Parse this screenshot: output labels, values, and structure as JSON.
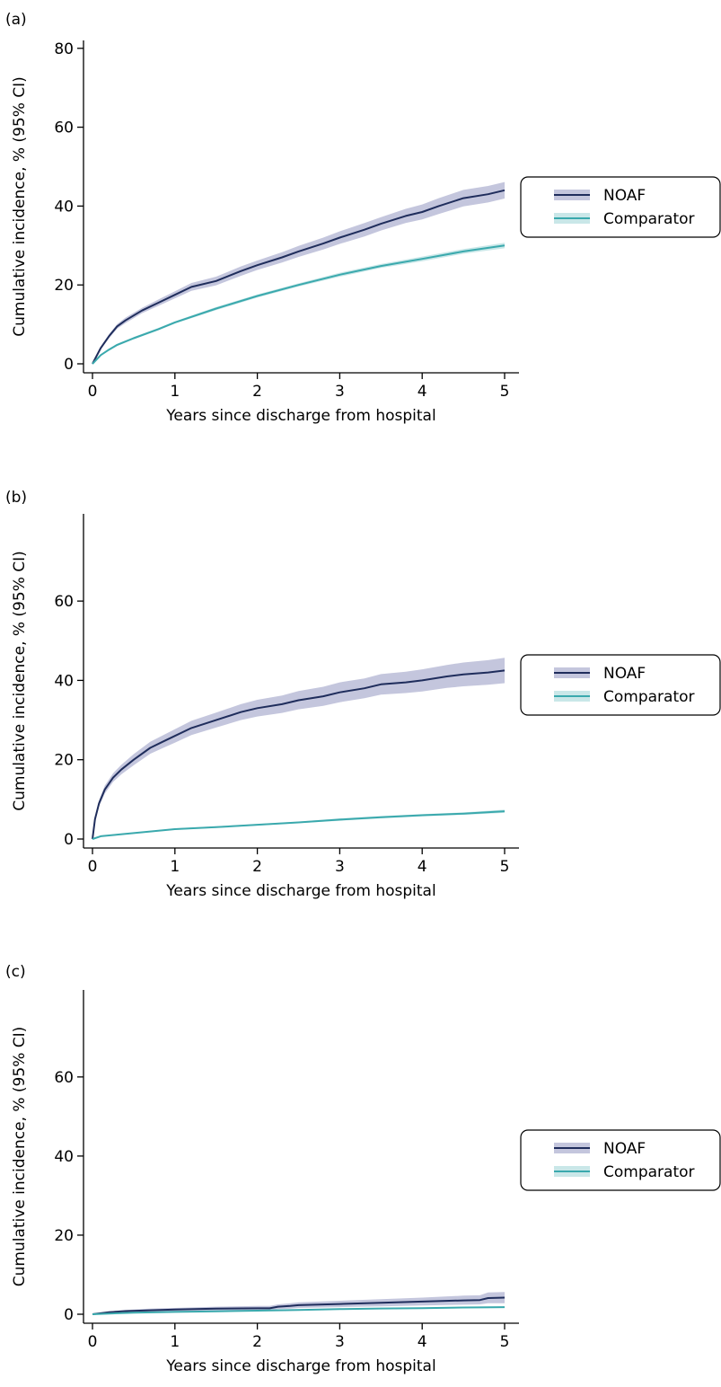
{
  "colors": {
    "noaf_line": "#1f2d5c",
    "noaf_band": "#c4c6dd",
    "comparator_line": "#3aa9ad",
    "comparator_band": "#c9e7e8"
  },
  "chart_data": [
    {
      "type": "line",
      "panel_label": "(a)",
      "xlabel": "Years since discharge from hospital",
      "ylabel": "Cumulative incidence, % (95% CI)",
      "xlim": [
        0,
        5
      ],
      "ylim": [
        0,
        82
      ],
      "xticks": [
        0,
        1,
        2,
        3,
        4,
        5
      ],
      "yticks": [
        0,
        20,
        40,
        60,
        80
      ],
      "legend_position": "right",
      "series": [
        {
          "name": "NOAF",
          "x": [
            0,
            0.1,
            0.2,
            0.3,
            0.4,
            0.6,
            0.8,
            1.0,
            1.2,
            1.5,
            1.8,
            2.0,
            2.3,
            2.5,
            2.8,
            3.0,
            3.3,
            3.5,
            3.8,
            4.0,
            4.2,
            4.5,
            4.8,
            5.0
          ],
          "values": [
            0,
            4,
            7,
            9.5,
            11,
            13.5,
            15.5,
            17.5,
            19.5,
            21,
            23.5,
            25,
            27,
            28.5,
            30.5,
            32,
            34,
            35.5,
            37.5,
            38.5,
            40,
            42,
            43,
            44
          ],
          "ci_low": [
            0,
            3.6,
            6.5,
            8.9,
            10.3,
            12.8,
            14.7,
            16.6,
            18.5,
            19.9,
            22.3,
            23.8,
            25.7,
            27.1,
            29.0,
            30.4,
            32.3,
            33.8,
            35.7,
            36.6,
            38.0,
            39.9,
            40.9,
            41.9
          ],
          "ci_high": [
            0,
            4.4,
            7.5,
            10.1,
            11.7,
            14.2,
            16.3,
            18.4,
            20.5,
            22.1,
            24.7,
            26.2,
            28.3,
            29.9,
            32.0,
            33.6,
            35.7,
            37.2,
            39.3,
            40.4,
            42.0,
            44.1,
            45.1,
            46.1
          ]
        },
        {
          "name": "Comparator",
          "x": [
            0,
            0.1,
            0.2,
            0.3,
            0.5,
            0.8,
            1.0,
            1.5,
            2.0,
            2.5,
            3.0,
            3.5,
            4.0,
            4.5,
            5.0
          ],
          "values": [
            0,
            2.2,
            3.6,
            4.8,
            6.5,
            8.8,
            10.5,
            14,
            17.2,
            20,
            22.6,
            24.8,
            26.6,
            28.5,
            30
          ],
          "ci_low": [
            0,
            2.0,
            3.3,
            4.5,
            6.2,
            8.5,
            10.2,
            13.6,
            16.8,
            19.6,
            22.1,
            24.3,
            26.0,
            27.9,
            29.3
          ],
          "ci_high": [
            0,
            2.4,
            3.9,
            5.1,
            6.8,
            9.1,
            10.8,
            14.4,
            17.6,
            20.4,
            23.1,
            25.3,
            27.2,
            29.1,
            30.7
          ]
        }
      ]
    },
    {
      "type": "line",
      "panel_label": "(b)",
      "xlabel": "Years since discharge from hospital",
      "ylabel": "Cumulative incidence, % (95% CI)",
      "xlim": [
        0,
        5
      ],
      "ylim": [
        0,
        82
      ],
      "xticks": [
        0,
        1,
        2,
        3,
        4,
        5
      ],
      "yticks": [
        0,
        20,
        40,
        60
      ],
      "legend_position": "right",
      "series": [
        {
          "name": "NOAF",
          "x": [
            0,
            0.03,
            0.08,
            0.15,
            0.25,
            0.35,
            0.5,
            0.7,
            0.85,
            1.0,
            1.2,
            1.5,
            1.8,
            2.0,
            2.3,
            2.5,
            2.8,
            3.0,
            3.3,
            3.5,
            3.8,
            4.0,
            4.3,
            4.5,
            4.8,
            5.0
          ],
          "values": [
            0,
            5,
            9,
            12.5,
            15.5,
            17.5,
            20,
            23,
            24.5,
            26,
            28,
            30,
            32,
            33,
            34,
            35,
            36,
            37,
            38,
            39,
            39.5,
            40,
            41,
            41.5,
            42,
            42.5
          ],
          "ci_low": [
            0,
            4.4,
            8.2,
            11.5,
            14.4,
            16.3,
            18.6,
            21.5,
            22.9,
            24.3,
            26.2,
            28.1,
            30.0,
            30.9,
            31.8,
            32.7,
            33.6,
            34.5,
            35.5,
            36.4,
            36.8,
            37.2,
            38.1,
            38.5,
            38.9,
            39.3
          ],
          "ci_high": [
            0,
            5.6,
            9.8,
            13.5,
            16.6,
            18.7,
            21.4,
            24.5,
            26.1,
            27.7,
            29.8,
            31.9,
            34.0,
            35.1,
            36.2,
            37.3,
            38.4,
            39.5,
            40.5,
            41.6,
            42.2,
            42.8,
            43.9,
            44.5,
            45.1,
            45.7
          ]
        },
        {
          "name": "Comparator",
          "x": [
            0,
            0.1,
            0.3,
            0.5,
            1.0,
            1.5,
            2.0,
            2.5,
            3.0,
            3.5,
            4.0,
            4.5,
            5.0
          ],
          "values": [
            0,
            0.7,
            1.1,
            1.5,
            2.5,
            3.0,
            3.6,
            4.2,
            4.9,
            5.5,
            6.0,
            6.4,
            7.0
          ],
          "ci_low": [
            0,
            0.6,
            1.0,
            1.4,
            2.3,
            2.8,
            3.4,
            4.0,
            4.6,
            5.2,
            5.7,
            6.1,
            6.6
          ],
          "ci_high": [
            0,
            0.8,
            1.2,
            1.6,
            2.7,
            3.2,
            3.8,
            4.4,
            5.2,
            5.8,
            6.3,
            6.7,
            7.4
          ]
        }
      ]
    },
    {
      "type": "line",
      "panel_label": "(c)",
      "xlabel": "Years since discharge from hospital",
      "ylabel": "Cumulative incidence, % (95% CI)",
      "xlim": [
        0,
        5
      ],
      "ylim": [
        0,
        82
      ],
      "xticks": [
        0,
        1,
        2,
        3,
        4,
        5
      ],
      "yticks": [
        0,
        20,
        40,
        60
      ],
      "legend_position": "right",
      "series": [
        {
          "name": "NOAF",
          "x": [
            0,
            0.2,
            0.4,
            0.7,
            1.0,
            1.5,
            2.0,
            2.15,
            2.25,
            2.4,
            2.5,
            3.0,
            3.5,
            4.0,
            4.5,
            4.7,
            4.8,
            5.0
          ],
          "values": [
            0,
            0.5,
            0.8,
            1.0,
            1.2,
            1.4,
            1.5,
            1.5,
            1.9,
            2.1,
            2.3,
            2.6,
            2.9,
            3.2,
            3.5,
            3.6,
            4.1,
            4.2
          ],
          "ci_low": [
            0,
            0.3,
            0.5,
            0.7,
            0.8,
            0.9,
            1.0,
            1.0,
            1.3,
            1.4,
            1.6,
            1.8,
            2.0,
            2.2,
            2.4,
            2.5,
            2.8,
            2.8
          ],
          "ci_high": [
            0,
            0.7,
            1.1,
            1.4,
            1.6,
            1.9,
            2.1,
            2.1,
            2.5,
            2.8,
            3.0,
            3.4,
            3.8,
            4.2,
            4.7,
            4.8,
            5.5,
            5.6
          ]
        },
        {
          "name": "Comparator",
          "x": [
            0,
            0.5,
            1.0,
            1.5,
            2.0,
            2.5,
            3.0,
            3.5,
            4.0,
            4.5,
            5.0
          ],
          "values": [
            0,
            0.4,
            0.6,
            0.75,
            0.9,
            1.1,
            1.3,
            1.45,
            1.55,
            1.7,
            1.8
          ],
          "ci_low": [
            0,
            0.3,
            0.5,
            0.65,
            0.8,
            1.0,
            1.15,
            1.3,
            1.4,
            1.5,
            1.6
          ],
          "ci_high": [
            0,
            0.5,
            0.7,
            0.85,
            1.0,
            1.2,
            1.45,
            1.6,
            1.7,
            1.9,
            2.0
          ]
        }
      ]
    }
  ]
}
